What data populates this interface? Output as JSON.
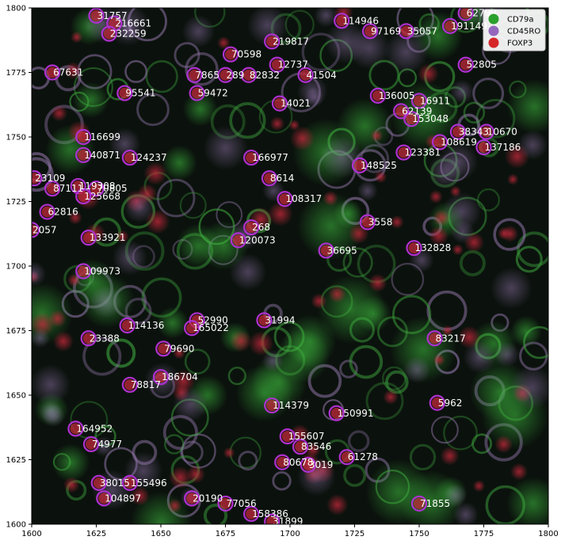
{
  "chart_data": {
    "type": "scatter",
    "title": "",
    "xlabel": "",
    "ylabel": "",
    "xlim": [
      1600,
      1800
    ],
    "ylim": [
      1600,
      1800
    ],
    "xticks": [
      "1600",
      "1625",
      "1650",
      "1675",
      "1700",
      "1725",
      "1750",
      "1775",
      "1800"
    ],
    "yticks": [
      "1600",
      "1625",
      "1650",
      "1675",
      "1700",
      "1725",
      "1750",
      "1775",
      "1800"
    ],
    "legend": {
      "position": "top-right",
      "items": [
        {
          "label": "CD79a",
          "color": "#2ca02c"
        },
        {
          "label": "CD45RO",
          "color": "#9467bd"
        },
        {
          "label": "FOXP3",
          "color": "#d62728"
        }
      ]
    },
    "cells": [
      {
        "id": "31757",
        "x": 1625,
        "y": 1797
      },
      {
        "id": "216661",
        "x": 1632,
        "y": 1794
      },
      {
        "id": "232259",
        "x": 1630,
        "y": 1790
      },
      {
        "id": "62799",
        "x": 1768,
        "y": 1798
      },
      {
        "id": "114946",
        "x": 1720,
        "y": 1795
      },
      {
        "id": "191149",
        "x": 1762,
        "y": 1793
      },
      {
        "id": "97169",
        "x": 1731,
        "y": 1791
      },
      {
        "id": "35057",
        "x": 1745,
        "y": 1791
      },
      {
        "id": "219817",
        "x": 1693,
        "y": 1787
      },
      {
        "id": "70598",
        "x": 1677,
        "y": 1782
      },
      {
        "id": "12737",
        "x": 1695,
        "y": 1778
      },
      {
        "id": "67631",
        "x": 1608,
        "y": 1775
      },
      {
        "id": "52805",
        "x": 1768,
        "y": 1778
      },
      {
        "id": "7865",
        "x": 1663,
        "y": 1774
      },
      {
        "id": "289",
        "x": 1675,
        "y": 1774
      },
      {
        "id": "82832",
        "x": 1684,
        "y": 1774
      },
      {
        "id": "41504",
        "x": 1706,
        "y": 1774
      },
      {
        "id": "95541",
        "x": 1636,
        "y": 1767
      },
      {
        "id": "59472",
        "x": 1664,
        "y": 1767
      },
      {
        "id": "14021",
        "x": 1696,
        "y": 1763
      },
      {
        "id": "136005",
        "x": 1734,
        "y": 1766
      },
      {
        "id": "16911",
        "x": 1750,
        "y": 1764
      },
      {
        "id": "62139",
        "x": 1743,
        "y": 1760
      },
      {
        "id": "153048",
        "x": 1747,
        "y": 1757
      },
      {
        "id": "116699",
        "x": 1620,
        "y": 1750
      },
      {
        "id": "38343",
        "x": 1765,
        "y": 1752
      },
      {
        "id": "10670",
        "x": 1776,
        "y": 1752
      },
      {
        "id": "108619",
        "x": 1758,
        "y": 1748
      },
      {
        "id": "137186",
        "x": 1775,
        "y": 1746
      },
      {
        "id": "123381",
        "x": 1744,
        "y": 1744
      },
      {
        "id": "140871",
        "x": 1620,
        "y": 1743
      },
      {
        "id": "124237",
        "x": 1638,
        "y": 1742
      },
      {
        "id": "166977",
        "x": 1685,
        "y": 1742
      },
      {
        "id": "148525",
        "x": 1727,
        "y": 1739
      },
      {
        "id": "23109",
        "x": 1601,
        "y": 1734
      },
      {
        "id": "8614",
        "x": 1692,
        "y": 1734
      },
      {
        "id": "87111",
        "x": 1608,
        "y": 1730
      },
      {
        "id": "119308",
        "x": 1618,
        "y": 1731
      },
      {
        "id": "70805",
        "x": 1625,
        "y": 1730
      },
      {
        "id": "125668",
        "x": 1620,
        "y": 1727
      },
      {
        "id": "108317",
        "x": 1698,
        "y": 1726
      },
      {
        "id": "62816",
        "x": 1606,
        "y": 1721
      },
      {
        "id": "3558",
        "x": 1730,
        "y": 1717
      },
      {
        "id": "268",
        "x": 1685,
        "y": 1715
      },
      {
        "id": "2057",
        "x": 1600,
        "y": 1714
      },
      {
        "id": "133921",
        "x": 1622,
        "y": 1711
      },
      {
        "id": "120073",
        "x": 1680,
        "y": 1710
      },
      {
        "id": "36695",
        "x": 1714,
        "y": 1706
      },
      {
        "id": "132828",
        "x": 1748,
        "y": 1707
      },
      {
        "id": "109973",
        "x": 1620,
        "y": 1698
      },
      {
        "id": "52990",
        "x": 1664,
        "y": 1679
      },
      {
        "id": "31994",
        "x": 1690,
        "y": 1679
      },
      {
        "id": "114136",
        "x": 1637,
        "y": 1677
      },
      {
        "id": "165022",
        "x": 1662,
        "y": 1676
      },
      {
        "id": "23388",
        "x": 1622,
        "y": 1672
      },
      {
        "id": "83217",
        "x": 1756,
        "y": 1672
      },
      {
        "id": "79690",
        "x": 1651,
        "y": 1668
      },
      {
        "id": "186704",
        "x": 1650,
        "y": 1657
      },
      {
        "id": "78817",
        "x": 1638,
        "y": 1654
      },
      {
        "id": "5962",
        "x": 1757,
        "y": 1647
      },
      {
        "id": "114379",
        "x": 1693,
        "y": 1646
      },
      {
        "id": "150991",
        "x": 1718,
        "y": 1643
      },
      {
        "id": "164952",
        "x": 1617,
        "y": 1637
      },
      {
        "id": "155607",
        "x": 1699,
        "y": 1634
      },
      {
        "id": "74977",
        "x": 1623,
        "y": 1631
      },
      {
        "id": "83546",
        "x": 1704,
        "y": 1630
      },
      {
        "id": "61278",
        "x": 1722,
        "y": 1626
      },
      {
        "id": "80678",
        "x": 1697,
        "y": 1624
      },
      {
        "id": "3019",
        "x": 1707,
        "y": 1623
      },
      {
        "id": "38015",
        "x": 1626,
        "y": 1616
      },
      {
        "id": "155496",
        "x": 1638,
        "y": 1616
      },
      {
        "id": "104897",
        "x": 1628,
        "y": 1610
      },
      {
        "id": "20190",
        "x": 1662,
        "y": 1610
      },
      {
        "id": "77056",
        "x": 1675,
        "y": 1608
      },
      {
        "id": "71855",
        "x": 1750,
        "y": 1608
      },
      {
        "id": "158386",
        "x": 1685,
        "y": 1604
      },
      {
        "id": "31899",
        "x": 1693,
        "y": 1601
      }
    ]
  }
}
